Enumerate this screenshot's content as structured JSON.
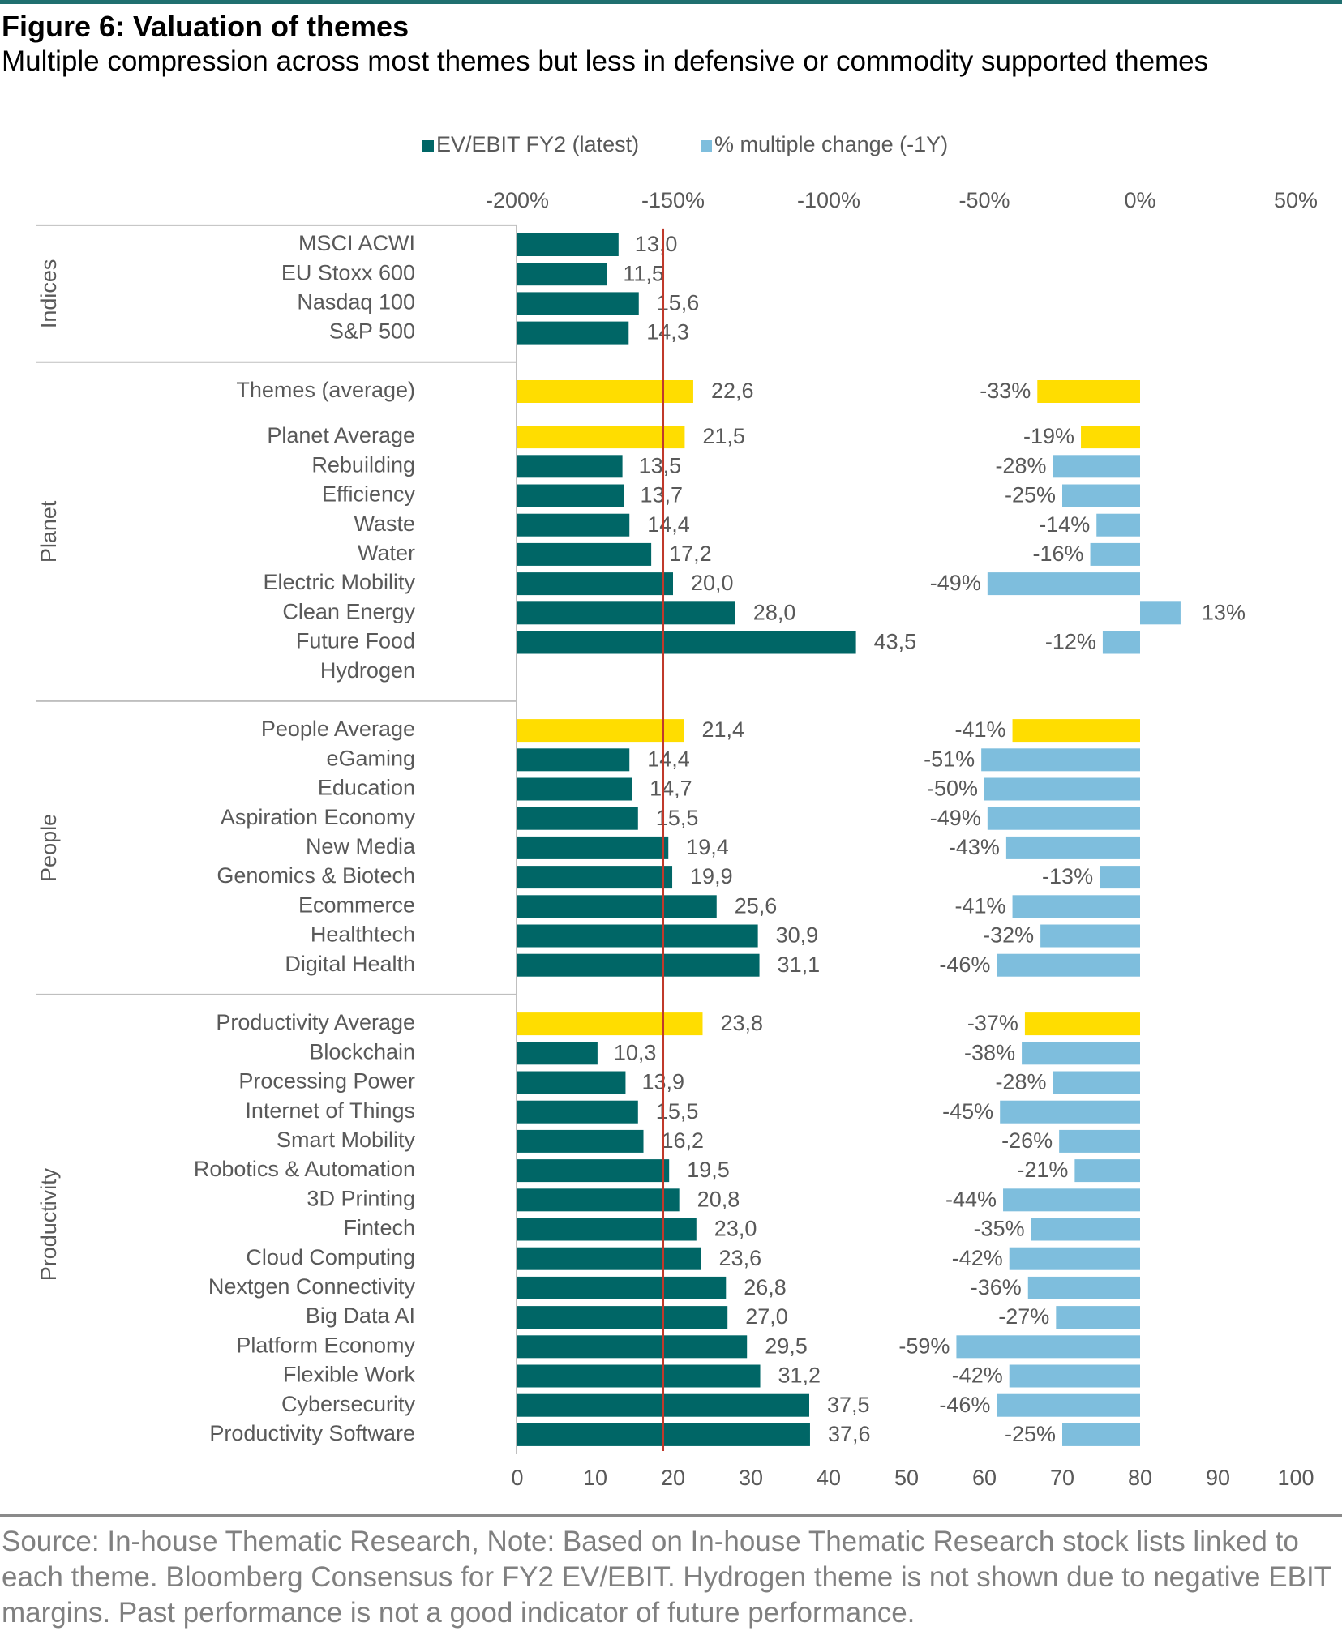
{
  "figure": {
    "title": "Figure 6: Valuation of themes",
    "subtitle": "Multiple compression across most themes but less in defensive or commodity supported themes",
    "source": "Source: In-house Thematic Research, Note: Based on In-house Thematic Research stock lists linked to each theme. Bloomberg Consensus for FY2 EV/EBIT. Hydrogen theme is not shown due to negative EBIT margins. Past performance is not a good indicator of future performance."
  },
  "chart_data": {
    "type": "bar",
    "orientation": "horizontal",
    "legend": {
      "position": "top",
      "items": [
        {
          "name": "EV/EBIT FY2 (latest)",
          "color": "#006666"
        },
        {
          "name": "% multiple change (-1Y)",
          "color": "#7ebedd"
        }
      ]
    },
    "colors": {
      "ev_bar": "#006666",
      "average_bar": "#ffdd00",
      "change_bar": "#7ebedd",
      "reference_line": "#c0392b",
      "axis_text": "#595959"
    },
    "top_axis": {
      "ticks": [
        "-200%",
        "-150%",
        "-100%",
        "-50%",
        "0%",
        "50%"
      ],
      "range": [
        -200,
        50
      ],
      "unit": "%"
    },
    "bottom_axis": {
      "ticks": [
        "0",
        "10",
        "20",
        "30",
        "40",
        "50",
        "60",
        "70",
        "80",
        "90",
        "100"
      ],
      "range": [
        0,
        100
      ]
    },
    "reference_line_value": 18.7,
    "groups": [
      {
        "name": "Indices",
        "rows": [
          {
            "label": "MSCI ACWI",
            "ev": 13.0,
            "ev_label": "13,0",
            "change": null,
            "change_label": "",
            "average": false
          },
          {
            "label": "EU Stoxx 600",
            "ev": 11.5,
            "ev_label": "11,5",
            "change": null,
            "change_label": "",
            "average": false
          },
          {
            "label": "Nasdaq 100",
            "ev": 15.6,
            "ev_label": "15,6",
            "change": null,
            "change_label": "",
            "average": false
          },
          {
            "label": "S&P 500",
            "ev": 14.3,
            "ev_label": "14,3",
            "change": null,
            "change_label": "",
            "average": false
          }
        ]
      },
      {
        "name": "Planet",
        "rows": [
          {
            "label": "Themes (average)",
            "ev": 22.6,
            "ev_label": "22,6",
            "change": -33,
            "change_label": "-33%",
            "average": true
          },
          {
            "label": "Planet Average",
            "ev": 21.5,
            "ev_label": "21,5",
            "change": -19,
            "change_label": "-19%",
            "average": true
          },
          {
            "label": "Rebuilding",
            "ev": 13.5,
            "ev_label": "13,5",
            "change": -28,
            "change_label": "-28%",
            "average": false
          },
          {
            "label": "Efficiency",
            "ev": 13.7,
            "ev_label": "13,7",
            "change": -25,
            "change_label": "-25%",
            "average": false
          },
          {
            "label": "Waste",
            "ev": 14.4,
            "ev_label": "14,4",
            "change": -14,
            "change_label": "-14%",
            "average": false
          },
          {
            "label": "Water",
            "ev": 17.2,
            "ev_label": "17,2",
            "change": -16,
            "change_label": "-16%",
            "average": false
          },
          {
            "label": "Electric Mobility",
            "ev": 20.0,
            "ev_label": "20,0",
            "change": -49,
            "change_label": "-49%",
            "average": false
          },
          {
            "label": "Clean Energy",
            "ev": 28.0,
            "ev_label": "28,0",
            "change": 13,
            "change_label": "13%",
            "average": false
          },
          {
            "label": "Future Food",
            "ev": 43.5,
            "ev_label": "43,5",
            "change": -12,
            "change_label": "-12%",
            "average": false
          },
          {
            "label": "Hydrogen",
            "ev": null,
            "ev_label": "",
            "change": null,
            "change_label": "",
            "average": false
          }
        ]
      },
      {
        "name": "People",
        "rows": [
          {
            "label": "People Average",
            "ev": 21.4,
            "ev_label": "21,4",
            "change": -41,
            "change_label": "-41%",
            "average": true
          },
          {
            "label": "eGaming",
            "ev": 14.4,
            "ev_label": "14,4",
            "change": -51,
            "change_label": "-51%",
            "average": false
          },
          {
            "label": "Education",
            "ev": 14.7,
            "ev_label": "14,7",
            "change": -50,
            "change_label": "-50%",
            "average": false
          },
          {
            "label": "Aspiration Economy",
            "ev": 15.5,
            "ev_label": "15,5",
            "change": -49,
            "change_label": "-49%",
            "average": false
          },
          {
            "label": "New Media",
            "ev": 19.4,
            "ev_label": "19,4",
            "change": -43,
            "change_label": "-43%",
            "average": false
          },
          {
            "label": "Genomics & Biotech",
            "ev": 19.9,
            "ev_label": "19,9",
            "change": -13,
            "change_label": "-13%",
            "average": false
          },
          {
            "label": "Ecommerce",
            "ev": 25.6,
            "ev_label": "25,6",
            "change": -41,
            "change_label": "-41%",
            "average": false
          },
          {
            "label": "Healthtech",
            "ev": 30.9,
            "ev_label": "30,9",
            "change": -32,
            "change_label": "-32%",
            "average": false
          },
          {
            "label": "Digital Health",
            "ev": 31.1,
            "ev_label": "31,1",
            "change": -46,
            "change_label": "-46%",
            "average": false
          }
        ]
      },
      {
        "name": "Productivity",
        "rows": [
          {
            "label": "Productivity Average",
            "ev": 23.8,
            "ev_label": "23,8",
            "change": -37,
            "change_label": "-37%",
            "average": true
          },
          {
            "label": "Blockchain",
            "ev": 10.3,
            "ev_label": "10,3",
            "change": -38,
            "change_label": "-38%",
            "average": false
          },
          {
            "label": "Processing Power",
            "ev": 13.9,
            "ev_label": "13,9",
            "change": -28,
            "change_label": "-28%",
            "average": false
          },
          {
            "label": "Internet of Things",
            "ev": 15.5,
            "ev_label": "15,5",
            "change": -45,
            "change_label": "-45%",
            "average": false
          },
          {
            "label": "Smart Mobility",
            "ev": 16.2,
            "ev_label": "16,2",
            "change": -26,
            "change_label": "-26%",
            "average": false
          },
          {
            "label": "Robotics & Automation",
            "ev": 19.5,
            "ev_label": "19,5",
            "change": -21,
            "change_label": "-21%",
            "average": false
          },
          {
            "label": "3D Printing",
            "ev": 20.8,
            "ev_label": "20,8",
            "change": -44,
            "change_label": "-44%",
            "average": false
          },
          {
            "label": "Fintech",
            "ev": 23.0,
            "ev_label": "23,0",
            "change": -35,
            "change_label": "-35%",
            "average": false
          },
          {
            "label": "Cloud Computing",
            "ev": 23.6,
            "ev_label": "23,6",
            "change": -42,
            "change_label": "-42%",
            "average": false
          },
          {
            "label": "Nextgen Connectivity",
            "ev": 26.8,
            "ev_label": "26,8",
            "change": -36,
            "change_label": "-36%",
            "average": false
          },
          {
            "label": "Big Data AI",
            "ev": 27.0,
            "ev_label": "27,0",
            "change": -27,
            "change_label": "-27%",
            "average": false
          },
          {
            "label": "Platform Economy",
            "ev": 29.5,
            "ev_label": "29,5",
            "change": -59,
            "change_label": "-59%",
            "average": false
          },
          {
            "label": "Flexible Work",
            "ev": 31.2,
            "ev_label": "31,2",
            "change": -42,
            "change_label": "-42%",
            "average": false
          },
          {
            "label": "Cybersecurity",
            "ev": 37.5,
            "ev_label": "37,5",
            "change": -46,
            "change_label": "-46%",
            "average": false
          },
          {
            "label": "Productivity Software",
            "ev": 37.6,
            "ev_label": "37,6",
            "change": -25,
            "change_label": "-25%",
            "average": false
          }
        ]
      }
    ]
  }
}
